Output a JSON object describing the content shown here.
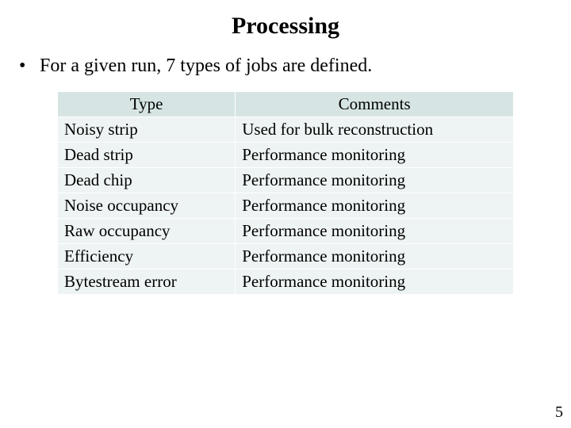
{
  "title": "Processing",
  "bullet": "For a given run, 7 types of jobs are defined.",
  "bullet_marker": "•",
  "table": {
    "columns": [
      "Type",
      "Comments"
    ],
    "col_widths_pct": [
      39,
      61
    ],
    "header_bg": "#d6e5e3",
    "cell_bg": "#eef4f3",
    "border_color": "#ffffff",
    "font_size_pt": 21,
    "header_align": "center",
    "cell_align": "left",
    "rows": [
      [
        "Noisy strip",
        "Used for bulk reconstruction"
      ],
      [
        "Dead strip",
        "Performance monitoring"
      ],
      [
        "Dead chip",
        "Performance monitoring"
      ],
      [
        "Noise occupancy",
        "Performance monitoring"
      ],
      [
        "Raw occupancy",
        "Performance monitoring"
      ],
      [
        "Efficiency",
        "Performance monitoring"
      ],
      [
        "Bytestream error",
        "Performance monitoring"
      ]
    ]
  },
  "page_number": "5",
  "colors": {
    "background": "#ffffff",
    "text": "#000000"
  },
  "typography": {
    "title_fontsize": 30,
    "title_weight": "bold",
    "body_fontsize": 24,
    "font_family": "Times New Roman"
  }
}
